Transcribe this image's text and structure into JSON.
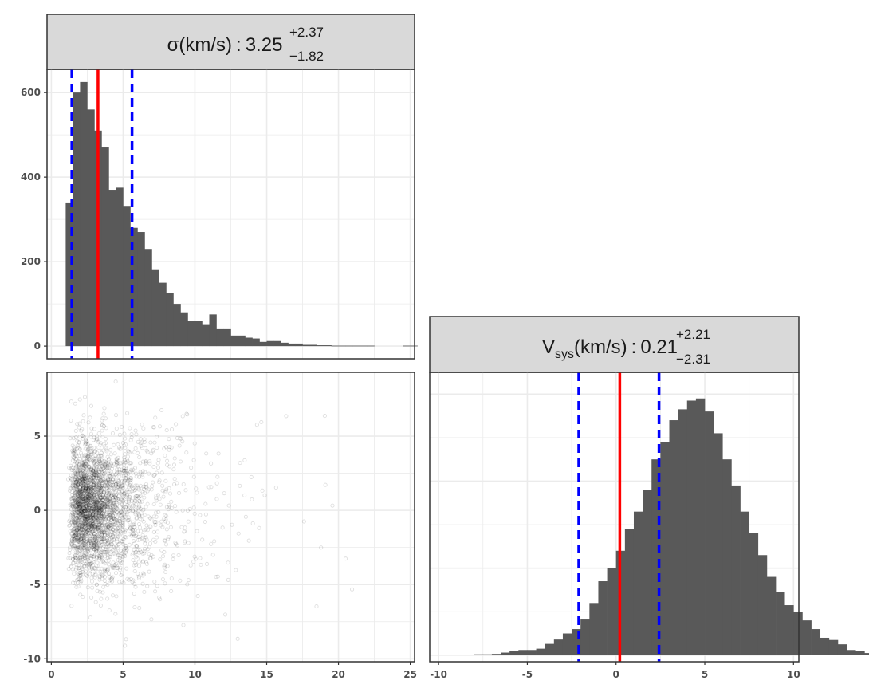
{
  "chart_data": [
    {
      "id": "sigma",
      "type": "bar",
      "panel": "histogram",
      "strip": {
        "symbol": "σ",
        "sub": "",
        "units": "(km/s)",
        "sep": ":",
        "median": "3.25",
        "plus": "+2.37",
        "minus": "−1.82"
      },
      "bin_width": 0.5,
      "bins_x_start": 1.0,
      "values": [
        340,
        600,
        625,
        560,
        510,
        470,
        370,
        375,
        330,
        280,
        270,
        230,
        180,
        150,
        125,
        100,
        80,
        60,
        60,
        50,
        75,
        40,
        40,
        25,
        25,
        20,
        18,
        10,
        12,
        12,
        8,
        6,
        6,
        3,
        3,
        2,
        2,
        1,
        1,
        1,
        1,
        1,
        1,
        0,
        0,
        0,
        0,
        1,
        1,
        0,
        0,
        0,
        0,
        0,
        0,
        0,
        1,
        1,
        0,
        0,
        0,
        0,
        0,
        0,
        0,
        0,
        1
      ],
      "median": 3.25,
      "lower": 1.43,
      "upper": 5.62,
      "xlim": [
        -0.3,
        25.3
      ],
      "ylim": [
        -30,
        655
      ],
      "x_ticks": [
        "0",
        "5",
        "10",
        "15",
        "20",
        "25"
      ],
      "y_ticks": [
        "0",
        "200",
        "400",
        "600"
      ],
      "grid": true
    },
    {
      "id": "vsys",
      "type": "bar",
      "panel": "histogram",
      "strip": {
        "symbol": "V",
        "sub": "sys",
        "units": "(km/s)",
        "sep": ":",
        "median": "0.21",
        "plus": "+2.21",
        "minus": "−2.31"
      },
      "bin_width": 0.5,
      "bins_x_start": -8.0,
      "values": [
        2,
        2,
        3,
        6,
        9,
        12,
        12,
        15,
        26,
        36,
        50,
        60,
        82,
        120,
        170,
        200,
        240,
        290,
        330,
        380,
        450,
        490,
        540,
        565,
        585,
        590,
        560,
        510,
        450,
        390,
        330,
        280,
        230,
        180,
        145,
        115,
        100,
        80,
        60,
        40,
        35,
        25,
        12,
        10,
        5,
        2,
        5,
        2,
        2,
        2
      ],
      "median": 0.21,
      "lower": -2.1,
      "upper": 2.42,
      "xlim": [
        -10.5,
        10.3
      ],
      "ylim": [
        -15,
        650
      ],
      "x_ticks": [
        "-10",
        "-5",
        "0",
        "5",
        "10"
      ],
      "grid": true
    },
    {
      "id": "joint",
      "type": "scatter",
      "panel": "scatter",
      "xlabel": "σ",
      "ylabel": "Vsys",
      "xlim": [
        -0.3,
        25.3
      ],
      "ylim": [
        -10.2,
        9.3
      ],
      "x_ticks": [
        "0",
        "5",
        "10",
        "15",
        "20",
        "25"
      ],
      "y_ticks": [
        "-10",
        "-5",
        "0",
        "5"
      ],
      "n_points": 3000,
      "grid": true
    }
  ],
  "colors": {
    "bar": "#595959",
    "median": "#ff0000",
    "interval": "#0000ff",
    "strip_bg": "#d9d9d9",
    "border": "#333333",
    "grid": "#ebebeb",
    "point": "#000000"
  }
}
